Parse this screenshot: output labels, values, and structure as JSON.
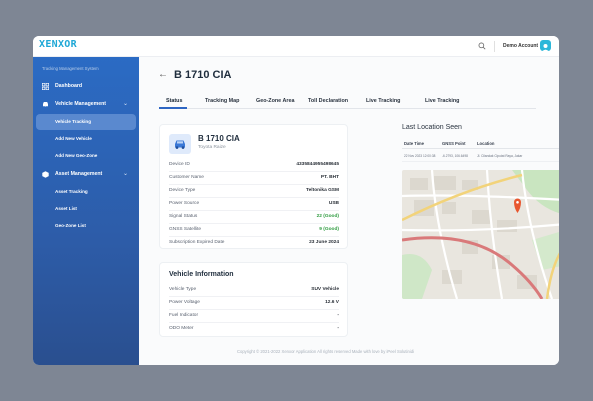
{
  "app": {
    "logo": "XENXOR",
    "account": "Demo Account",
    "colors": {
      "accent": "#2e66c3",
      "sidebar": "#2d5ca8",
      "good": "#2e9b3f",
      "marker": "#e8562e"
    }
  },
  "sidebar": {
    "title": "Tracking Management System",
    "dashboard": "Dashboard",
    "vehicle_management": "Vehicle Management",
    "vehicle_subitems": [
      "Vehicle Tracking",
      "Add New Vehicle",
      "Add New Geo-Zone"
    ],
    "asset_management": "Asset Management",
    "asset_subitems": [
      "Asset Tracking",
      "Asset List",
      "Geo-Zone List"
    ]
  },
  "page": {
    "title": "B 1710 CIA",
    "tabs": [
      "Status",
      "Tracking Map",
      "Geo-Zone Area",
      "Toll Declaration",
      "Live Tracking",
      "Live Tracking"
    ]
  },
  "device_card": {
    "plate": "B 1710 CIA",
    "model": "Toyota Raize",
    "rows": [
      {
        "key": "Device ID",
        "value": "4335844955498645"
      },
      {
        "key": "Customer Name",
        "value": "PT. BHT"
      },
      {
        "key": "Device Type",
        "value": "Teltonika GSM"
      },
      {
        "key": "Power Source",
        "value": "USB"
      },
      {
        "key": "Signal Status",
        "value": "22 (Good)"
      },
      {
        "key": "GNSS Satellite",
        "value": "9 (Good)"
      },
      {
        "key": "Subscription Expired Date",
        "value": "23 June 2024"
      }
    ]
  },
  "vehicle_info": {
    "title": "Vehicle  Information",
    "rows": [
      {
        "key": "Vehicle Type",
        "value": "SUV Vehicle"
      },
      {
        "key": "Power Voltage",
        "value": "12.6 V"
      },
      {
        "key": "Fuel Indicator",
        "value": "-"
      },
      {
        "key": "ODO Meter",
        "value": "-"
      }
    ]
  },
  "last_location": {
    "title": "Last Location Seen",
    "headers": [
      "Date Time",
      "GNSS Point",
      "Location"
    ],
    "row": [
      "22 Nov 2023 12:00:38",
      "-6.2793, 106.6498",
      "Jl. Cilandak Ciputat Raya, Jakar"
    ]
  },
  "footer": "Copyright © 2021-2022 Xenxor Application All rights reserved Made with love by iPeel Solutinidi"
}
